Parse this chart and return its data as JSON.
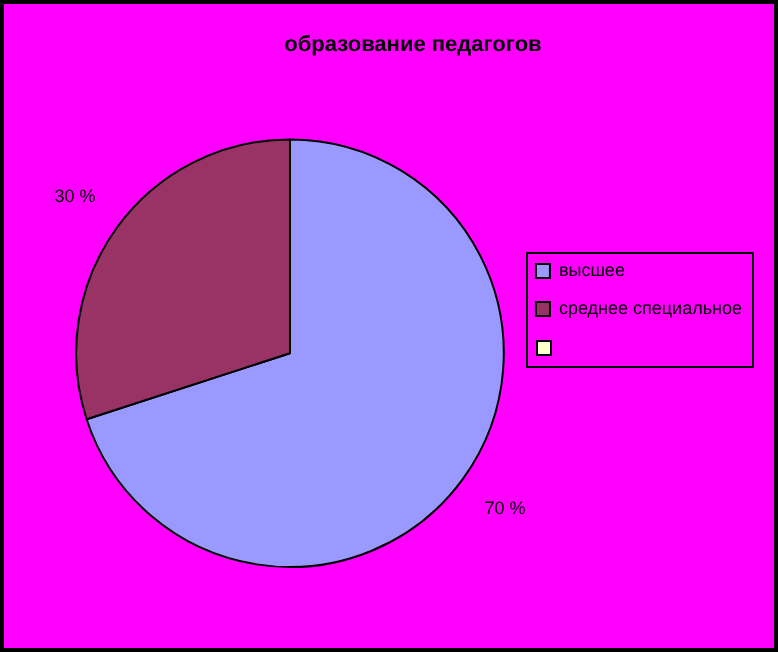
{
  "chart_data": {
    "type": "pie",
    "title": "образование педагогов",
    "categories": [
      "высшее",
      "среднее специальное"
    ],
    "values": [
      70,
      30
    ],
    "colors": [
      "#9999ff",
      "#993366"
    ],
    "value_labels": [
      "70 %",
      "30 %"
    ],
    "legend": "right"
  }
}
